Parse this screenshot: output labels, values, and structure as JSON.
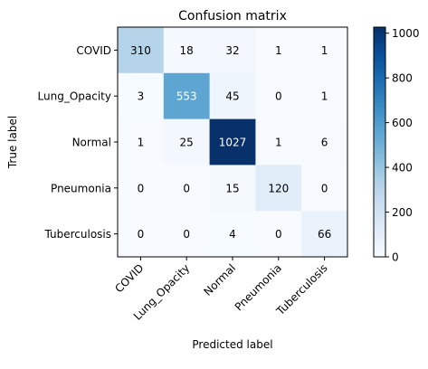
{
  "chart_data": {
    "type": "heatmap",
    "title": "Confusion matrix",
    "xlabel": "Predicted label",
    "ylabel": "True label",
    "x_categories": [
      "COVID",
      "Lung_Opacity",
      "Normal",
      "Pneumonia",
      "Tuberculosis"
    ],
    "y_categories": [
      "COVID",
      "Lung_Opacity",
      "Normal",
      "Pneumonia",
      "Tuberculosis"
    ],
    "matrix": [
      [
        310,
        18,
        32,
        1,
        1
      ],
      [
        3,
        553,
        45,
        0,
        1
      ],
      [
        1,
        25,
        1027,
        1,
        6
      ],
      [
        0,
        0,
        15,
        120,
        0
      ],
      [
        0,
        0,
        4,
        0,
        66
      ]
    ],
    "colormap": "Blues",
    "colorbar": {
      "min": 0,
      "max": 1027,
      "ticks": [
        0,
        200,
        400,
        600,
        800,
        1000
      ]
    },
    "grid": false
  }
}
